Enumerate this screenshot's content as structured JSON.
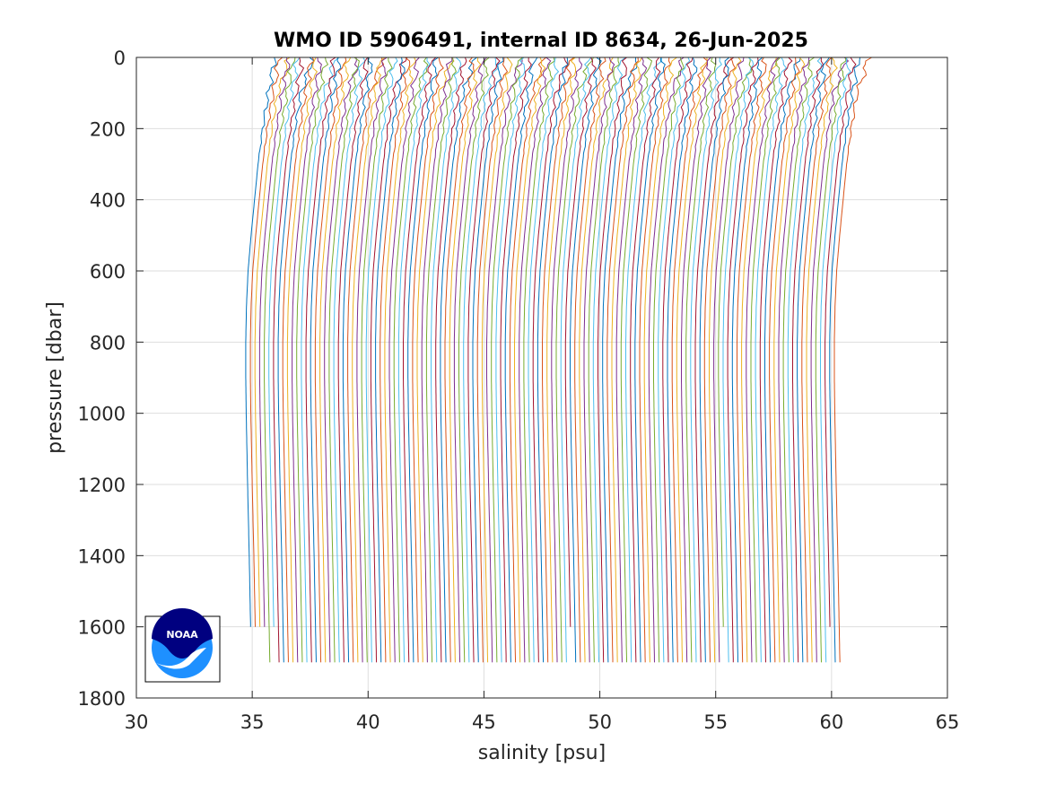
{
  "chart_data": {
    "type": "line",
    "title": "WMO ID 5906491, internal ID 8634, 26-Jun-2025",
    "xlabel": "salinity [psu]",
    "ylabel": "pressure [dbar]",
    "xlim": [
      30,
      65
    ],
    "ylim": [
      0,
      1800
    ],
    "y_reversed": true,
    "xticks": [
      "30",
      "35",
      "40",
      "45",
      "50",
      "55",
      "60",
      "65"
    ],
    "yticks": [
      "0",
      "200",
      "400",
      "600",
      "800",
      "1000",
      "1200",
      "1400",
      "1600",
      "1800"
    ],
    "grid": true,
    "legend": "none",
    "series_count": 128,
    "profile_offset_psu": 0.2,
    "series_colors": [
      "#0072BD",
      "#D95319",
      "#EDB120",
      "#7E2F8E",
      "#77AC30",
      "#4DBEEE",
      "#A2142F"
    ],
    "base_profile": {
      "pressure": [
        0,
        50,
        100,
        200,
        300,
        400,
        500,
        600,
        700,
        800,
        900,
        1000,
        1200,
        1400,
        1600,
        1700
      ],
      "salinity": [
        35.95,
        35.85,
        35.7,
        35.45,
        35.25,
        35.1,
        34.95,
        34.82,
        34.75,
        34.72,
        34.72,
        34.74,
        34.8,
        34.87,
        34.93,
        34.96
      ]
    },
    "series_max_pressure": {
      "default": 1700,
      "shallow_series_indices": [
        0,
        1,
        2,
        3,
        5,
        69,
        102,
        125
      ],
      "shallow_value": 1600
    }
  },
  "logo": {
    "text": "NOAA",
    "colors": {
      "navy": "#000080",
      "sky": "#1E90FF",
      "white": "#ffffff"
    }
  }
}
